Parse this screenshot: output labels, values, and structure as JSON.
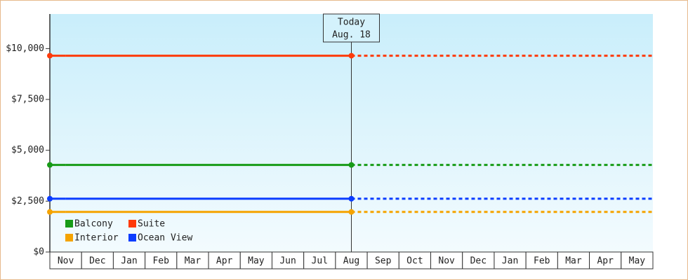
{
  "chart_data": {
    "type": "line",
    "categories": [
      "Nov",
      "Dec",
      "Jan",
      "Feb",
      "Mar",
      "Apr",
      "May",
      "Jun",
      "Jul",
      "Aug",
      "Sep",
      "Oct",
      "Nov",
      "Dec",
      "Jan",
      "Feb",
      "Mar",
      "Apr",
      "May"
    ],
    "series": [
      {
        "name": "Balcony",
        "color": "#179b17",
        "values": [
          4280,
          4280,
          4280,
          4280,
          4280,
          4280,
          4280,
          4280,
          4280,
          4280,
          null,
          null,
          null,
          null,
          null,
          null,
          null,
          null,
          null
        ]
      },
      {
        "name": "Suite",
        "color": "#ff3a0a",
        "values": [
          9650,
          9650,
          9650,
          9650,
          9650,
          9650,
          9650,
          9650,
          9650,
          9650,
          null,
          null,
          null,
          null,
          null,
          null,
          null,
          null,
          null
        ]
      },
      {
        "name": "Interior",
        "color": "#f5a300",
        "values": [
          1970,
          1970,
          1970,
          1970,
          1970,
          1970,
          1970,
          1970,
          1970,
          1970,
          null,
          null,
          null,
          null,
          null,
          null,
          null,
          null,
          null
        ]
      },
      {
        "name": "Ocean View",
        "color": "#0a3cff",
        "values": [
          2620,
          2620,
          2620,
          2620,
          2620,
          2620,
          2620,
          2620,
          2620,
          2620,
          null,
          null,
          null,
          null,
          null,
          null,
          null,
          null,
          null
        ]
      }
    ],
    "annotations": [
      "Today",
      "Aug. 18"
    ],
    "ylim": [
      0,
      11700
    ],
    "yticks": [
      {
        "value": 0,
        "label": "$0"
      },
      {
        "value": 2500,
        "label": "$2,500"
      },
      {
        "value": 5000,
        "label": "$5,000"
      },
      {
        "value": 7500,
        "label": "$7,500"
      },
      {
        "value": 10000,
        "label": "$10,000"
      }
    ],
    "legend": "lower left"
  }
}
